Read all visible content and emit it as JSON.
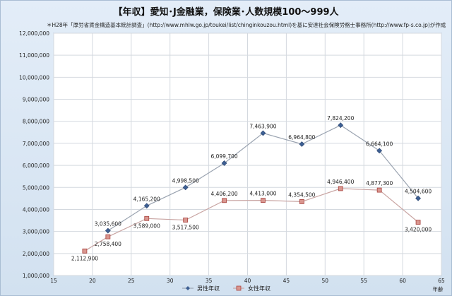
{
  "chart_data": {
    "type": "line",
    "title": "【年収】愛知･J金融業，保険業･人数規模100～999人",
    "subtitle": "＊H28年「厚労省賃金構造基本統計調査」(http://www.mhlw.go.jp/toukei/list/chinginkouzou.html)を基に安達社会保険労務士事務所(http://www.fp-s.co.jp)が作成",
    "xlabel": "年齢",
    "ylabel": "",
    "xlim": [
      15,
      65
    ],
    "ylim": [
      1000000,
      12000000
    ],
    "xticks": [
      15,
      20,
      25,
      30,
      35,
      40,
      45,
      50,
      55,
      60,
      65
    ],
    "yticks": [
      1000000,
      2000000,
      3000000,
      4000000,
      5000000,
      6000000,
      7000000,
      8000000,
      9000000,
      10000000,
      11000000,
      12000000
    ],
    "ytick_labels": [
      "1,000,000",
      "2,000,000",
      "3,000,000",
      "4,000,000",
      "5,000,000",
      "6,000,000",
      "7,000,000",
      "8,000,000",
      "9,000,000",
      "10,000,000",
      "11,000,000",
      "12,000,000"
    ],
    "grid": true,
    "legend": "bottom",
    "series": [
      {
        "name": "男性年収",
        "color": "#4a6fa5",
        "marker": "diamond",
        "x": [
          22,
          27,
          32,
          37,
          42,
          47,
          52,
          57,
          62
        ],
        "values": [
          3035600,
          4165200,
          4998500,
          6099700,
          7463900,
          6964800,
          7824200,
          6664100,
          4504600
        ],
        "labels": [
          "3,035,600",
          "4,165,200",
          "4,998,500",
          "6,099,700",
          "7,463,900",
          "6,964,800",
          "7,824,200",
          "6,664,100",
          "4,504,600"
        ]
      },
      {
        "name": "女性年収",
        "color": "#c0504d",
        "marker": "square",
        "x": [
          19,
          22,
          27,
          32,
          37,
          42,
          47,
          52,
          57,
          62
        ],
        "values": [
          2112900,
          2758400,
          3589000,
          3517500,
          4406200,
          4413000,
          4354500,
          4946400,
          4877300,
          3420000
        ],
        "labels": [
          "2,112,900",
          "2,758,400",
          "3,589,000",
          "3,517,500",
          "4,406,200",
          "4,413,000",
          "4,354,500",
          "4,946,400",
          "4,877,300",
          "3,420,000"
        ]
      }
    ]
  }
}
